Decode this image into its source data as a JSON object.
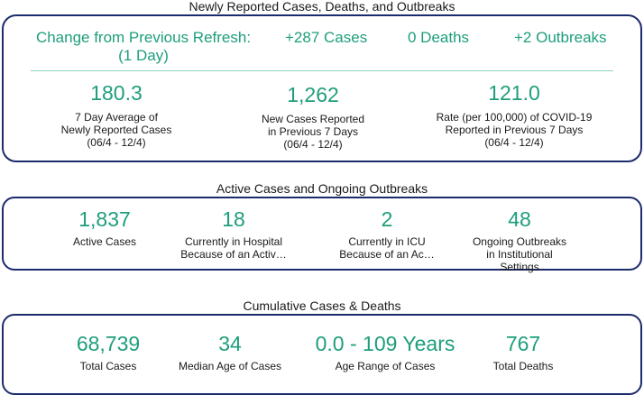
{
  "sections": {
    "newly_reported": {
      "title": "Newly Reported Cases, Deaths, and Outbreaks",
      "change_label_line1": "Change from Previous Refresh:",
      "change_label_line2": "(1 Day)",
      "change_cases": "+287 Cases",
      "change_deaths": "0 Deaths",
      "change_outbreaks": "+2 Outbreaks",
      "metrics": [
        {
          "value": "180.3",
          "label_lines": [
            "7 Day Average of",
            "Newly Reported Cases",
            "(06/4 - 12/4)"
          ]
        },
        {
          "value": "1,262",
          "label_lines": [
            "New Cases Reported",
            "in Previous 7 Days",
            "(06/4 - 12/4)"
          ]
        },
        {
          "value": "121.0",
          "label_lines": [
            "Rate (per 100,000) of COVID-19",
            "Reported in Previous 7 Days",
            "(06/4 - 12/4)"
          ]
        }
      ]
    },
    "active": {
      "title": "Active Cases and Ongoing Outbreaks",
      "metrics": [
        {
          "value": "1,837",
          "label_lines": [
            "Active Cases"
          ]
        },
        {
          "value": "18",
          "label_lines": [
            "Currently in Hospital",
            "Because of an Activ…"
          ]
        },
        {
          "value": "2",
          "label_lines": [
            "Currently in ICU",
            "Because of an Ac…"
          ]
        },
        {
          "value": "48",
          "label_lines": [
            "Ongoing Outbreaks",
            "in Institutional",
            "Settings"
          ]
        }
      ]
    },
    "cumulative": {
      "title": "Cumulative Cases & Deaths",
      "metrics": [
        {
          "value": "68,739",
          "label_lines": [
            "Total Cases"
          ]
        },
        {
          "value": "34",
          "label_lines": [
            "Median Age of Cases"
          ]
        },
        {
          "value": "0.0 - 109 Years",
          "label_lines": [
            "Age Range of Cases"
          ]
        },
        {
          "value": "767",
          "label_lines": [
            "Total Deaths"
          ]
        }
      ]
    }
  },
  "colors": {
    "accent": "#1e9e7c",
    "border": "#1c2b6b",
    "divider": "#8fd3c0"
  }
}
